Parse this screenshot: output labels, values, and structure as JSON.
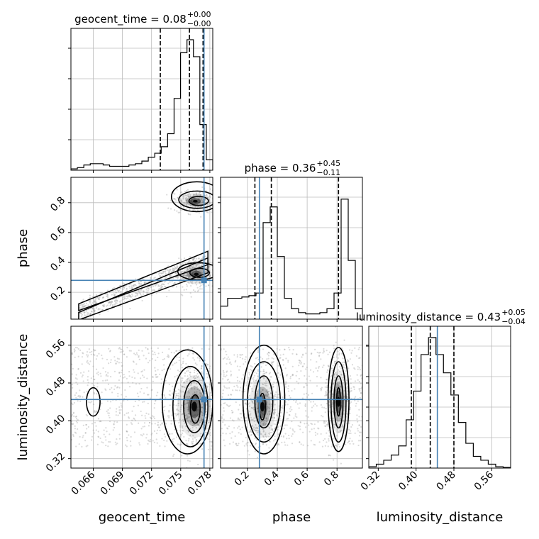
{
  "chart_data": {
    "type": "corner",
    "parameters": [
      {
        "name": "geocent_time",
        "label": "geocent_time",
        "title_main": "geocent_time = 0.08",
        "title_plus": "+0.00",
        "title_minus": "−0.00",
        "range": [
          0.0637,
          0.0783
        ],
        "ticks": [
          0.066,
          0.069,
          0.072,
          0.075,
          0.078
        ],
        "tick_labels": [
          "0.066",
          "0.069",
          "0.072",
          "0.075",
          "0.078"
        ],
        "quantiles": [
          0.0729,
          0.0759,
          0.0773
        ],
        "truth": 0.0774,
        "hist": [
          0.01,
          0.02,
          0.04,
          0.05,
          0.05,
          0.04,
          0.03,
          0.03,
          0.03,
          0.04,
          0.05,
          0.07,
          0.1,
          0.13,
          0.18,
          0.28,
          0.55,
          0.9,
          1.0,
          0.87,
          0.35,
          0.08
        ]
      },
      {
        "name": "phase",
        "label": "phase",
        "title_main": "phase = 0.36",
        "title_plus": "+0.45",
        "title_minus": "−0.11",
        "range": [
          0.02,
          0.97
        ],
        "ticks": [
          0.2,
          0.4,
          0.6,
          0.8
        ],
        "tick_labels": [
          "0.2",
          "0.4",
          "0.6",
          "0.8"
        ],
        "quantiles": [
          0.25,
          0.36,
          0.81
        ],
        "truth": 0.28,
        "hist": [
          0.1,
          0.16,
          0.16,
          0.17,
          0.18,
          0.2,
          0.74,
          0.86,
          0.48,
          0.16,
          0.08,
          0.05,
          0.04,
          0.04,
          0.05,
          0.08,
          0.2,
          0.92,
          0.45,
          0.08
        ]
      },
      {
        "name": "luminosity_distance",
        "label": "luminosity_distance",
        "title_main": "luminosity_distance = 0.43",
        "title_plus": "+0.05",
        "title_minus": "−0.04",
        "range": [
          0.3,
          0.6
        ],
        "ticks": [
          0.32,
          0.4,
          0.48,
          0.56
        ],
        "tick_labels": [
          "0.32",
          "0.40",
          "0.48",
          "0.56"
        ],
        "quantiles": [
          0.39,
          0.43,
          0.48
        ],
        "truth": 0.445,
        "hist": [
          0.01,
          0.03,
          0.06,
          0.1,
          0.17,
          0.37,
          0.59,
          0.87,
          1.0,
          0.87,
          0.73,
          0.56,
          0.35,
          0.19,
          0.09,
          0.06,
          0.03,
          0.01,
          0.005
        ]
      }
    ],
    "pairs": [
      {
        "x": "geocent_time",
        "y": "phase",
        "clusters": [
          {
            "cx": 0.0765,
            "cy": 0.81,
            "sx": 0.0007,
            "sy": 0.025,
            "n": 260
          },
          {
            "cx": 0.0766,
            "cy": 0.32,
            "sx": 0.0007,
            "sy": 0.03,
            "n": 260
          }
        ],
        "contours": [
          {
            "cx": 0.07685,
            "cy": 0.812,
            "rx": 0.001,
            "ry": 0.03
          },
          {
            "cx": 0.0767,
            "cy": 0.82,
            "rx": 0.0019,
            "ry": 0.058
          },
          {
            "cx": 0.07665,
            "cy": 0.84,
            "rx": 0.0026,
            "ry": 0.1
          },
          {
            "cx": 0.07695,
            "cy": 0.33,
            "rx": 0.001,
            "ry": 0.03
          },
          {
            "cx": 0.0768,
            "cy": 0.34,
            "rx": 0.0021,
            "ry": 0.058
          }
        ],
        "bands": [
          {
            "a": [
              0.0645,
              0.04
            ],
            "b": [
              0.0778,
              0.38
            ],
            "w": 0.05
          },
          {
            "a": [
              0.0645,
              0.1
            ],
            "b": [
              0.0778,
              0.43
            ],
            "w": 0.045
          }
        ]
      },
      {
        "x": "geocent_time",
        "y": "luminosity_distance",
        "clusters": [
          {
            "cx": 0.0764,
            "cy": 0.43,
            "sx": 0.0008,
            "sy": 0.03,
            "n": 360
          }
        ],
        "contours": [
          {
            "cx": 0.0765,
            "cy": 0.425,
            "rx": 0.0005,
            "ry": 0.03
          },
          {
            "cx": 0.0764,
            "cy": 0.43,
            "rx": 0.0011,
            "ry": 0.055
          },
          {
            "cx": 0.076,
            "cy": 0.43,
            "rx": 0.0018,
            "ry": 0.085
          },
          {
            "cx": 0.0757,
            "cy": 0.44,
            "rx": 0.0026,
            "ry": 0.11
          },
          {
            "cx": 0.066,
            "cy": 0.44,
            "rx": 0.0007,
            "ry": 0.03
          }
        ]
      },
      {
        "x": "phase",
        "y": "luminosity_distance",
        "clusters": [
          {
            "cx": 0.3,
            "cy": 0.43,
            "sx": 0.04,
            "sy": 0.03,
            "n": 300
          },
          {
            "cx": 0.81,
            "cy": 0.44,
            "sx": 0.03,
            "sy": 0.03,
            "n": 300
          }
        ],
        "contours": [
          {
            "cx": 0.3,
            "cy": 0.43,
            "rx": 0.02,
            "ry": 0.028
          },
          {
            "cx": 0.31,
            "cy": 0.44,
            "rx": 0.06,
            "ry": 0.055
          },
          {
            "cx": 0.31,
            "cy": 0.44,
            "rx": 0.11,
            "ry": 0.085
          },
          {
            "cx": 0.31,
            "cy": 0.445,
            "rx": 0.14,
            "ry": 0.115
          },
          {
            "cx": 0.81,
            "cy": 0.44,
            "rx": 0.012,
            "ry": 0.03
          },
          {
            "cx": 0.81,
            "cy": 0.44,
            "rx": 0.03,
            "ry": 0.055
          },
          {
            "cx": 0.81,
            "cy": 0.44,
            "rx": 0.05,
            "ry": 0.085
          },
          {
            "cx": 0.81,
            "cy": 0.445,
            "rx": 0.07,
            "ry": 0.11
          }
        ]
      }
    ],
    "grid": true,
    "colors": {
      "truth": "#4682b4",
      "hist": "#000000",
      "contour": "#000000",
      "grid": "#bbbbbb"
    }
  }
}
